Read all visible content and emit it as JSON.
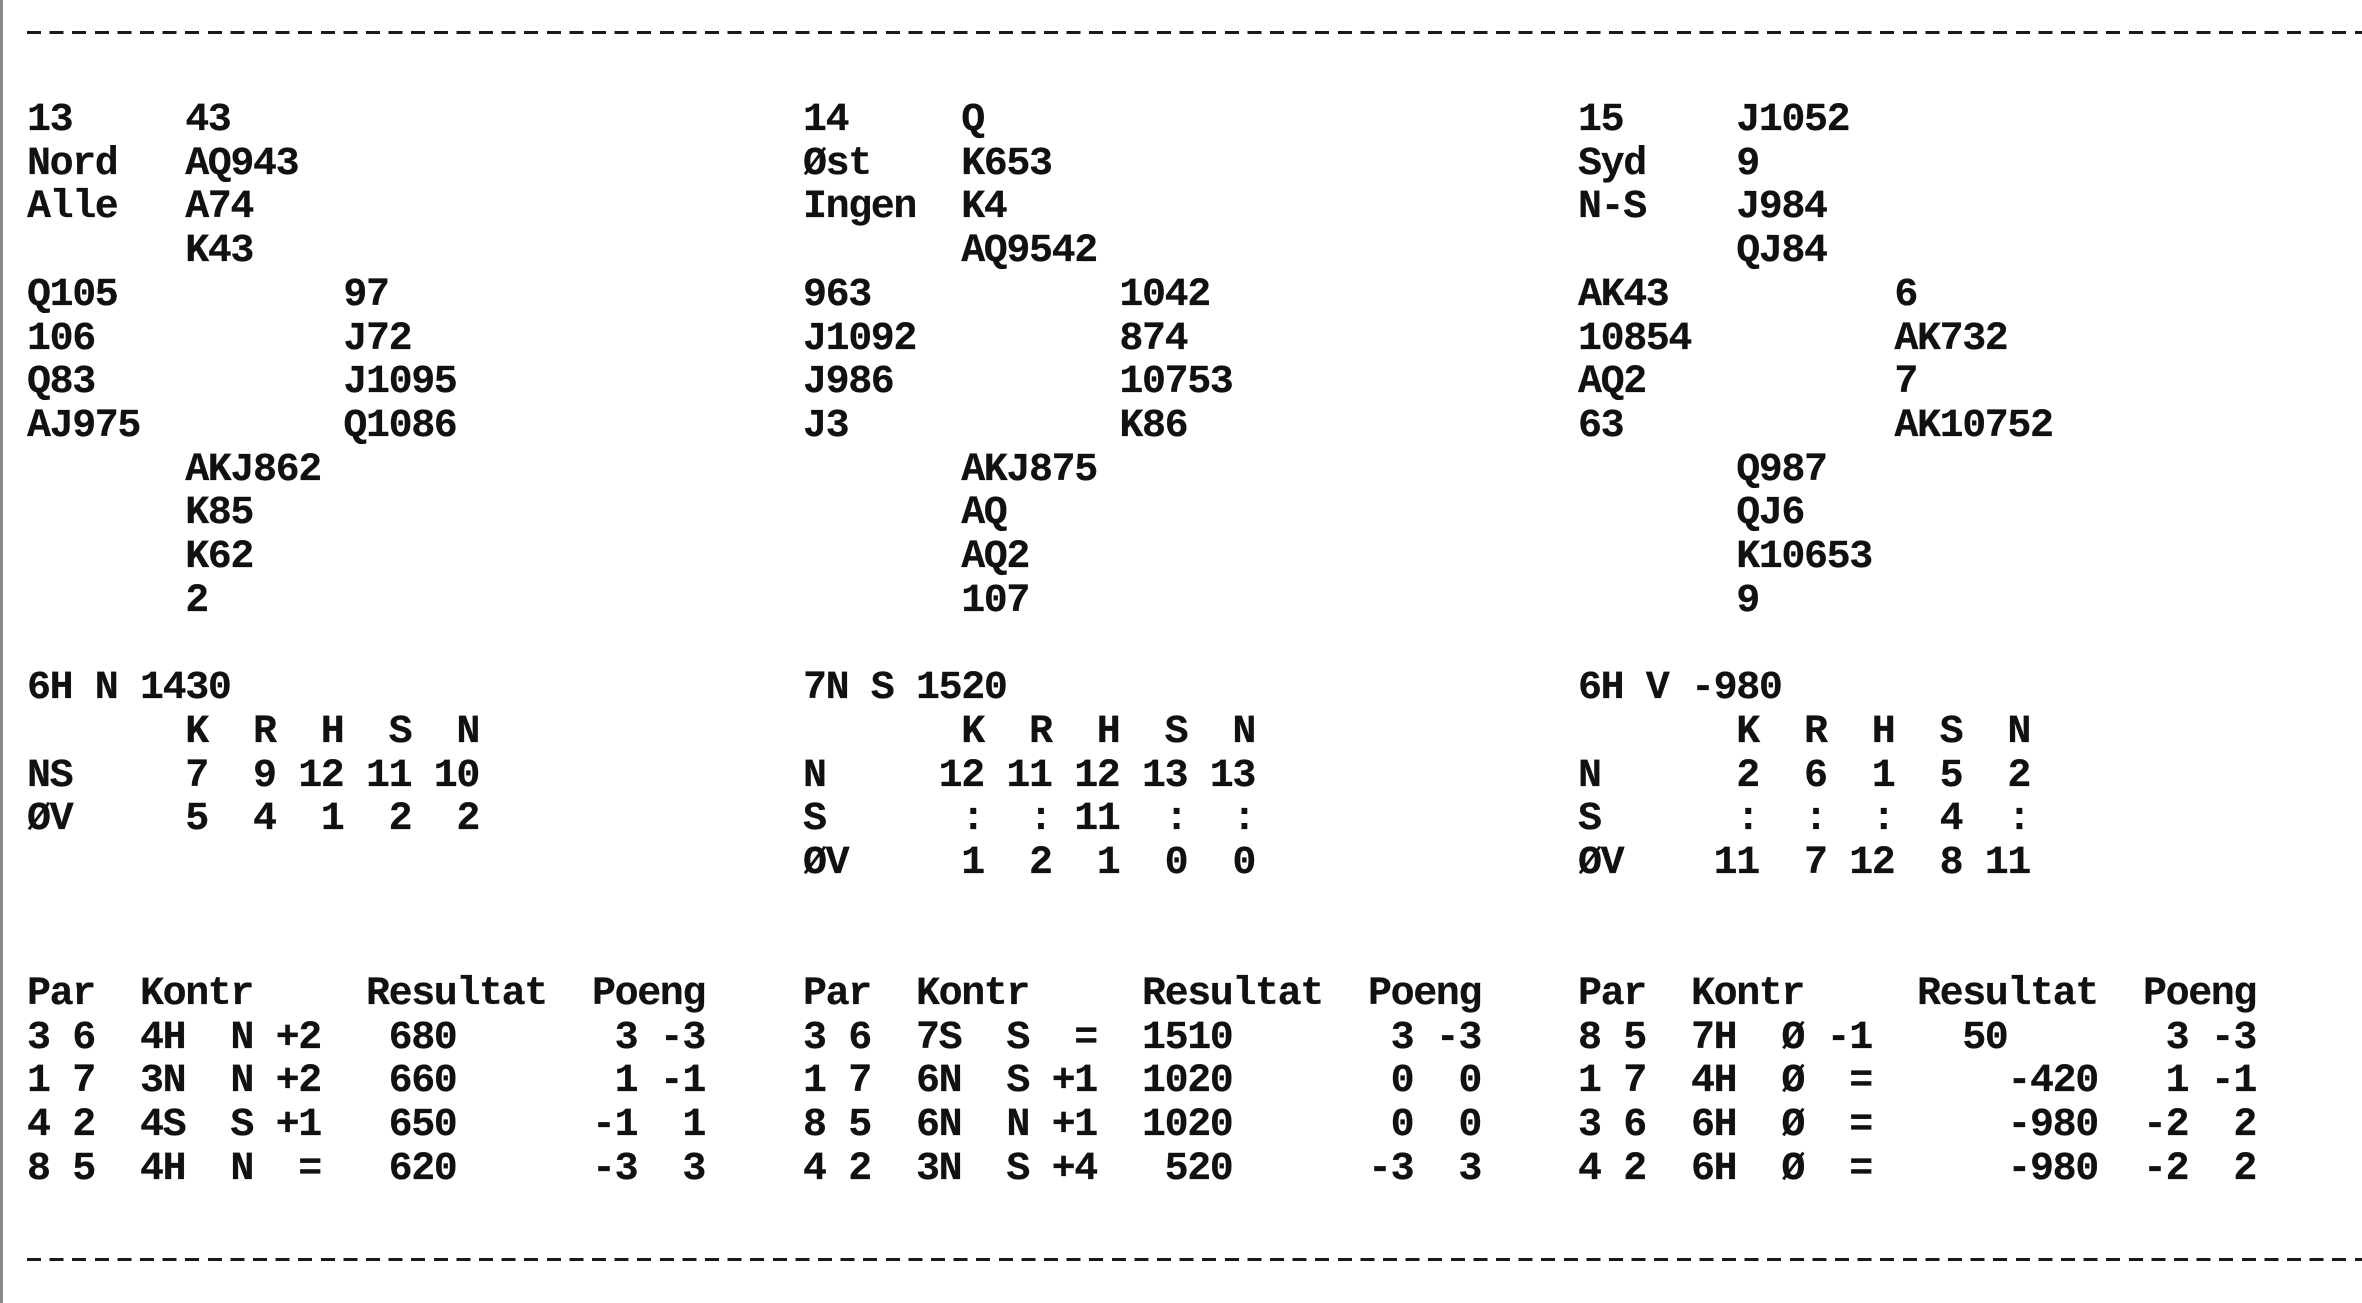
{
  "labels": {
    "trick_header": [
      "K",
      "R",
      "H",
      "S",
      "N"
    ],
    "results_header": {
      "pair": "Par",
      "contract": "Kontr",
      "result": "Resultat",
      "points": "Poeng"
    }
  },
  "boards": [
    {
      "number": "13",
      "dealer": "Nord",
      "vulnerability": "Alle",
      "hands": {
        "north": [
          "43",
          "AQ943",
          "A74",
          "K43"
        ],
        "west": [
          "Q105",
          "106",
          "Q83",
          "AJ975"
        ],
        "east": [
          "97",
          "J72",
          "J1095",
          "Q1086"
        ],
        "south": [
          "AKJ862",
          "K85",
          "K62",
          "2"
        ]
      },
      "par": "6H N 1430",
      "tricks": [
        {
          "label": "NS",
          "values": [
            "7",
            "9",
            "12",
            "11",
            "10"
          ]
        },
        {
          "label": "ØV",
          "values": [
            "5",
            "4",
            "1",
            "2",
            "2"
          ]
        }
      ],
      "results": [
        {
          "pair": "3 6",
          "contract": "4H",
          "declarer": "N",
          "tricks": "+2",
          "score_ns": "680",
          "score_ew": "",
          "points_ns": "3",
          "points_ew": "-3"
        },
        {
          "pair": "1 7",
          "contract": "3N",
          "declarer": "N",
          "tricks": "+2",
          "score_ns": "660",
          "score_ew": "",
          "points_ns": "1",
          "points_ew": "-1"
        },
        {
          "pair": "4 2",
          "contract": "4S",
          "declarer": "S",
          "tricks": "+1",
          "score_ns": "650",
          "score_ew": "",
          "points_ns": "-1",
          "points_ew": "1"
        },
        {
          "pair": "8 5",
          "contract": "4H",
          "declarer": "N",
          "tricks": "=",
          "score_ns": "620",
          "score_ew": "",
          "points_ns": "-3",
          "points_ew": "3"
        }
      ]
    },
    {
      "number": "14",
      "dealer": "Øst",
      "vulnerability": "Ingen",
      "hands": {
        "north": [
          "Q",
          "K653",
          "K4",
          "AQ9542"
        ],
        "west": [
          "963",
          "J1092",
          "J986",
          "J3"
        ],
        "east": [
          "1042",
          "874",
          "10753",
          "K86"
        ],
        "south": [
          "AKJ875",
          "AQ",
          "AQ2",
          "107"
        ]
      },
      "par": "7N S 1520",
      "tricks": [
        {
          "label": "N",
          "values": [
            "12",
            "11",
            "12",
            "13",
            "13"
          ]
        },
        {
          "label": "S",
          "values": [
            ":",
            ":",
            "11",
            ":",
            ":"
          ]
        },
        {
          "label": "ØV",
          "values": [
            "1",
            "2",
            "1",
            "0",
            "0"
          ]
        }
      ],
      "results": [
        {
          "pair": "3 6",
          "contract": "7S",
          "declarer": "S",
          "tricks": "=",
          "score_ns": "1510",
          "score_ew": "",
          "points_ns": "3",
          "points_ew": "-3"
        },
        {
          "pair": "1 7",
          "contract": "6N",
          "declarer": "S",
          "tricks": "+1",
          "score_ns": "1020",
          "score_ew": "",
          "points_ns": "0",
          "points_ew": "0"
        },
        {
          "pair": "8 5",
          "contract": "6N",
          "declarer": "N",
          "tricks": "+1",
          "score_ns": "1020",
          "score_ew": "",
          "points_ns": "0",
          "points_ew": "0"
        },
        {
          "pair": "4 2",
          "contract": "3N",
          "declarer": "S",
          "tricks": "+4",
          "score_ns": "520",
          "score_ew": "",
          "points_ns": "-3",
          "points_ew": "3"
        }
      ]
    },
    {
      "number": "15",
      "dealer": "Syd",
      "vulnerability": "N-S",
      "hands": {
        "north": [
          "J1052",
          "9",
          "J984",
          "QJ84"
        ],
        "west": [
          "AK43",
          "10854",
          "AQ2",
          "63"
        ],
        "east": [
          "6",
          "AK732",
          "7",
          "AK10752"
        ],
        "south": [
          "Q987",
          "QJ6",
          "K10653",
          "9"
        ]
      },
      "par": "6H V -980",
      "tricks": [
        {
          "label": "N",
          "values": [
            "2",
            "6",
            "1",
            "5",
            "2"
          ]
        },
        {
          "label": "S",
          "values": [
            ":",
            ":",
            ":",
            "4",
            ":"
          ]
        },
        {
          "label": "ØV",
          "values": [
            "11",
            "7",
            "12",
            "8",
            "11"
          ]
        }
      ],
      "results": [
        {
          "pair": "8 5",
          "contract": "7H",
          "declarer": "Ø",
          "tricks": "-1",
          "score_ns": "50",
          "score_ew": "",
          "points_ns": "3",
          "points_ew": "-3"
        },
        {
          "pair": "1 7",
          "contract": "4H",
          "declarer": "Ø",
          "tricks": "=",
          "score_ns": "",
          "score_ew": "-420",
          "points_ns": "1",
          "points_ew": "-1"
        },
        {
          "pair": "3 6",
          "contract": "6H",
          "declarer": "Ø",
          "tricks": "=",
          "score_ns": "",
          "score_ew": "-980",
          "points_ns": "-2",
          "points_ew": "2"
        },
        {
          "pair": "4 2",
          "contract": "6H",
          "declarer": "Ø",
          "tricks": "=",
          "score_ns": "",
          "score_ew": "-980",
          "points_ns": "-2",
          "points_ew": "2"
        }
      ]
    }
  ]
}
